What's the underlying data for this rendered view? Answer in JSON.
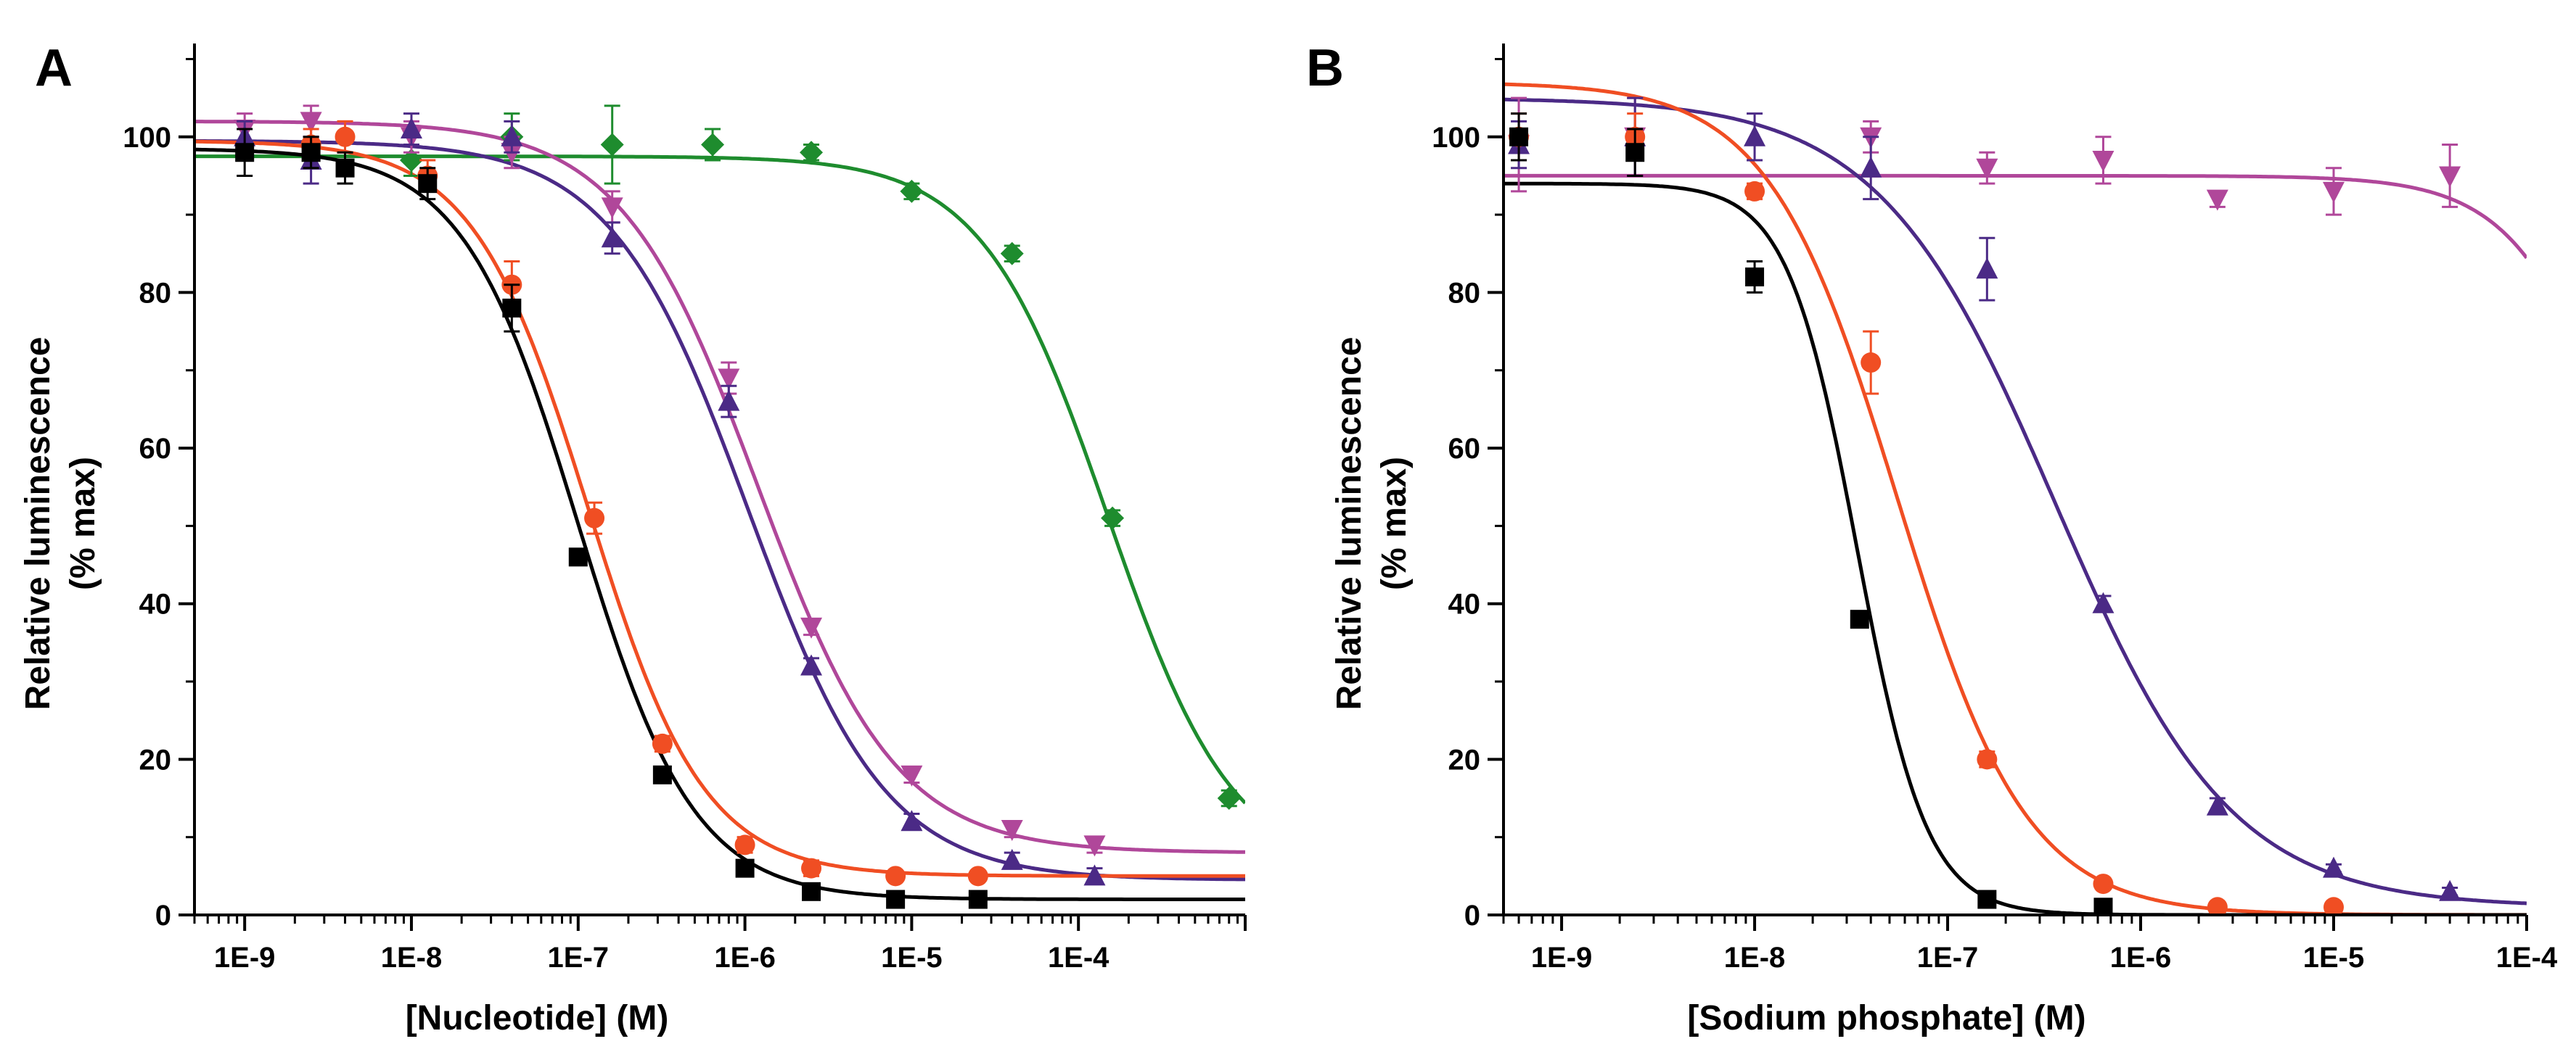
{
  "chart_data": [
    {
      "type": "line",
      "panel_label": "A",
      "xlabel": "[Nucleotide] (M)",
      "ylabel_line1": "Relative luminescence",
      "ylabel_line2": "(% max)",
      "xscale": "log",
      "xlim": [
        5e-10,
        0.001
      ],
      "ylim": [
        0,
        112
      ],
      "x_ticks": [
        1e-09,
        1e-08,
        1e-07,
        1e-06,
        1e-05,
        0.0001
      ],
      "x_tick_labels": [
        "1E-9",
        "1E-8",
        "1E-7",
        "1E-6",
        "1E-5",
        "1E-4"
      ],
      "y_ticks": [
        0,
        20,
        40,
        60,
        80,
        100
      ],
      "y_tick_labels": [
        "0",
        "20",
        "40",
        "60",
        "80",
        "100"
      ],
      "series": [
        {
          "name": "black-squares",
          "color": "#000000",
          "marker": "square",
          "x": [
            1e-09,
            2.5e-09,
            4e-09,
            1.25e-08,
            4e-08,
            1e-07,
            3.2e-07,
            1e-06,
            2.5e-06,
            8e-06,
            2.5e-05
          ],
          "y": [
            98,
            98,
            96,
            94,
            78,
            46,
            18,
            6,
            3,
            2,
            2
          ],
          "err": [
            3,
            2,
            2,
            2,
            3,
            1,
            1,
            1,
            1,
            0.5,
            0.5
          ],
          "fit": {
            "top": 98.5,
            "bottom": 2,
            "ec50": 1e-07,
            "hill": 1.25
          }
        },
        {
          "name": "red-circles",
          "color": "#f04e23",
          "marker": "circle",
          "x": [
            2.5e-09,
            4e-09,
            1.25e-08,
            4e-08,
            1.25e-07,
            3.2e-07,
            1e-06,
            2.5e-06,
            8e-06,
            2.5e-05
          ],
          "y": [
            99,
            100,
            95,
            81,
            51,
            22,
            9,
            6,
            5,
            5
          ],
          "err": [
            2,
            2,
            2,
            3,
            2,
            1,
            1,
            1,
            0.5,
            0.5
          ],
          "fit": {
            "top": 99.5,
            "bottom": 5,
            "ec50": 1.15e-07,
            "hill": 1.25
          }
        },
        {
          "name": "purple-up-triangles",
          "color": "#4b2a86",
          "marker": "triangle-up",
          "x": [
            1e-09,
            2.5e-09,
            1e-08,
            4e-08,
            1.6e-07,
            8e-07,
            2.5e-06,
            1e-05,
            4e-05,
            0.000125
          ],
          "y": [
            100,
            97,
            101,
            100,
            87,
            66,
            32,
            12,
            7,
            5
          ],
          "err": [
            2,
            3,
            2,
            2,
            2,
            2,
            1,
            1,
            1,
            1
          ],
          "fit": {
            "top": 99.5,
            "bottom": 4.5,
            "ec50": 1.05e-06,
            "hill": 1.05
          }
        },
        {
          "name": "magenta-down-triangles",
          "color": "#b0479a",
          "marker": "triangle-down",
          "x": [
            1e-09,
            2.5e-09,
            1e-08,
            4e-08,
            1.6e-07,
            8e-07,
            2.5e-06,
            1e-05,
            4e-05,
            0.000125
          ],
          "y": [
            101,
            102,
            100,
            98,
            91,
            69,
            37,
            18,
            11,
            9
          ],
          "err": [
            2,
            2,
            2,
            2,
            2,
            2,
            1,
            1,
            1,
            1
          ],
          "fit": {
            "top": 102,
            "bottom": 8,
            "ec50": 1.2e-06,
            "hill": 1.05
          }
        },
        {
          "name": "green-diamonds",
          "color": "#1e8c2e",
          "marker": "diamond",
          "x": [
            1e-08,
            4e-08,
            1.6e-07,
            6.4e-07,
            2.5e-06,
            1e-05,
            4e-05,
            0.00016,
            0.0008
          ],
          "y": [
            97,
            100,
            99,
            99,
            98,
            93,
            85,
            51,
            15
          ],
          "err": [
            2,
            3,
            5,
            2,
            1,
            1,
            1,
            1,
            1
          ],
          "fit": {
            "top": 97.5,
            "bottom": 5,
            "ec50": 0.00015,
            "hill": 1.15
          }
        }
      ]
    },
    {
      "type": "line",
      "panel_label": "B",
      "xlabel": "[Sodium phosphate] (M)",
      "ylabel_line1": "Relative luminescence",
      "ylabel_line2": "(% max)",
      "xscale": "log",
      "xlim": [
        5e-10,
        0.0001
      ],
      "ylim": [
        0,
        112
      ],
      "x_ticks": [
        1e-09,
        1e-08,
        1e-07,
        1e-06,
        1e-05,
        0.0001
      ],
      "x_tick_labels": [
        "1E-9",
        "1E-8",
        "1E-7",
        "1E-6",
        "1E-5",
        "1E-4"
      ],
      "y_ticks": [
        0,
        20,
        40,
        60,
        80,
        100
      ],
      "y_tick_labels": [
        "0",
        "20",
        "40",
        "60",
        "80",
        "100"
      ],
      "series": [
        {
          "name": "black-squares",
          "color": "#000000",
          "marker": "square",
          "x": [
            6e-10,
            2.4e-09,
            1e-08,
            3.5e-08,
            1.6e-07,
            6.4e-07
          ],
          "y": [
            100,
            98,
            82,
            38,
            2,
            1
          ],
          "err": [
            3,
            3,
            2,
            1,
            0.5,
            0.5
          ],
          "fit": {
            "top": 94,
            "bottom": 0,
            "ec50": 3.4e-08,
            "hill": 2.4
          }
        },
        {
          "name": "red-circles",
          "color": "#f04e23",
          "marker": "circle",
          "x": [
            6e-10,
            2.4e-09,
            1e-08,
            4e-08,
            1.6e-07,
            6.4e-07,
            2.5e-06,
            1e-05
          ],
          "y": [
            100,
            100,
            93,
            71,
            20,
            4,
            1,
            1
          ],
          "err": [
            3,
            3,
            1,
            4,
            1,
            0.5,
            0.5,
            0.5
          ],
          "fit": {
            "top": 107,
            "bottom": 0,
            "ec50": 5.5e-08,
            "hill": 1.3
          }
        },
        {
          "name": "purple-up-triangles",
          "color": "#4b2a86",
          "marker": "triangle-up",
          "x": [
            6e-10,
            2.4e-09,
            1e-08,
            4e-08,
            1.6e-07,
            6.4e-07,
            2.5e-06,
            1e-05,
            4e-05
          ],
          "y": [
            99,
            100,
            100,
            96,
            83,
            40,
            14,
            6,
            3
          ],
          "err": [
            3,
            5,
            3,
            4,
            4,
            1,
            1,
            0.5,
            0.5
          ],
          "fit": {
            "top": 105,
            "bottom": 1,
            "ec50": 3.6e-07,
            "hill": 0.95
          }
        },
        {
          "name": "magenta-down-triangles",
          "color": "#b0479a",
          "marker": "triangle-down",
          "x": [
            6e-10,
            2.4e-09,
            4e-08,
            1.6e-07,
            6.4e-07,
            2.5e-06,
            1e-05,
            4e-05
          ],
          "y": [
            99,
            100,
            100,
            96,
            97,
            92,
            93,
            95
          ],
          "err": [
            6,
            5,
            2,
            2,
            3,
            1,
            3,
            4
          ],
          "fit": {
            "top": 95,
            "bottom": 0,
            "ec50": 0.0004,
            "hill": 1.5
          }
        }
      ]
    }
  ]
}
